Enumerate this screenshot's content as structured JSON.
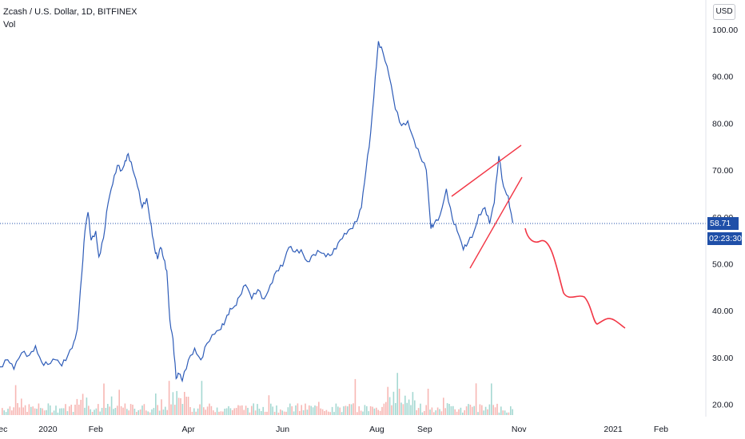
{
  "header": {
    "symbol": "Zcash / U.S. Dollar, 1D, BITFINEX",
    "indicator": "Vol"
  },
  "currency_button": "USD",
  "last_price": "58.71",
  "countdown": "02:23:30",
  "colors": {
    "line": "#2e5cb8",
    "drawing": "#f23645",
    "vol_up": "#a5d8d2",
    "vol_down": "#f7b7b4",
    "badge": "#1f4fa8"
  },
  "chart_data": {
    "type": "line",
    "title": "Zcash / U.S. Dollar, 1D, BITFINEX",
    "xlabel": "",
    "ylabel": "",
    "ylim": [
      19,
      102
    ],
    "y_ticks": [
      "100.00",
      "90.00",
      "80.00",
      "70.00",
      "60.00",
      "50.00",
      "40.00",
      "30.00",
      "20.00"
    ],
    "x_ticks": [
      "Dec",
      "2020",
      "Feb",
      "Apr",
      "Jun",
      "Aug",
      "Sep",
      "Nov",
      "2021",
      "Feb"
    ],
    "x_tick_dates": [
      "2019-12-01",
      "2020-01-01",
      "2020-02-01",
      "2020-04-01",
      "2020-06-01",
      "2020-08-01",
      "2020-09-01",
      "2020-11-01",
      "2021-01-01",
      "2021-02-01"
    ],
    "x_range": [
      "2019-12-01",
      "2021-03-02"
    ],
    "last_value": 58.71,
    "series": [
      {
        "values": [
          [
            "2019-12-01",
            28.0
          ],
          [
            "2019-12-06",
            29.5
          ],
          [
            "2019-12-10",
            27.5
          ],
          [
            "2019-12-15",
            31.0
          ],
          [
            "2019-12-20",
            30.5
          ],
          [
            "2019-12-24",
            32.5
          ],
          [
            "2019-12-28",
            29.0
          ],
          [
            "2020-01-01",
            28.5
          ],
          [
            "2020-01-06",
            29.5
          ],
          [
            "2020-01-10",
            28.2
          ],
          [
            "2020-01-14",
            30.5
          ],
          [
            "2020-01-18",
            33.5
          ],
          [
            "2020-01-20",
            36.0
          ],
          [
            "2020-01-23",
            48.0
          ],
          [
            "2020-01-25",
            57.0
          ],
          [
            "2020-01-27",
            61.0
          ],
          [
            "2020-01-29",
            55.0
          ],
          [
            "2020-02-01",
            57.0
          ],
          [
            "2020-02-03",
            51.5
          ],
          [
            "2020-02-06",
            55.5
          ],
          [
            "2020-02-09",
            63.0
          ],
          [
            "2020-02-12",
            67.0
          ],
          [
            "2020-02-15",
            71.0
          ],
          [
            "2020-02-18",
            70.0
          ],
          [
            "2020-02-20",
            72.0
          ],
          [
            "2020-02-22",
            73.5
          ],
          [
            "2020-02-25",
            70.0
          ],
          [
            "2020-02-28",
            66.5
          ],
          [
            "2020-03-02",
            62.0
          ],
          [
            "2020-03-05",
            64.0
          ],
          [
            "2020-03-08",
            58.0
          ],
          [
            "2020-03-10",
            53.5
          ],
          [
            "2020-03-12",
            51.0
          ],
          [
            "2020-03-14",
            53.5
          ],
          [
            "2020-03-16",
            51.0
          ],
          [
            "2020-03-18",
            48.5
          ],
          [
            "2020-03-20",
            38.0
          ],
          [
            "2020-03-22",
            34.0
          ],
          [
            "2020-03-24",
            25.5
          ],
          [
            "2020-03-26",
            26.5
          ],
          [
            "2020-03-28",
            25.0
          ],
          [
            "2020-04-01",
            29.5
          ],
          [
            "2020-04-05",
            32.0
          ],
          [
            "2020-04-09",
            29.5
          ],
          [
            "2020-04-13",
            33.0
          ],
          [
            "2020-04-18",
            35.0
          ],
          [
            "2020-04-22",
            36.0
          ],
          [
            "2020-04-25",
            38.0
          ],
          [
            "2020-04-28",
            40.5
          ],
          [
            "2020-05-01",
            41.0
          ],
          [
            "2020-05-04",
            43.0
          ],
          [
            "2020-05-08",
            45.5
          ],
          [
            "2020-05-12",
            42.5
          ],
          [
            "2020-05-16",
            44.5
          ],
          [
            "2020-05-20",
            42.5
          ],
          [
            "2020-05-24",
            45.5
          ],
          [
            "2020-05-28",
            48.5
          ],
          [
            "2020-06-01",
            49.5
          ],
          [
            "2020-06-05",
            53.5
          ],
          [
            "2020-06-09",
            52.5
          ],
          [
            "2020-06-13",
            53.0
          ],
          [
            "2020-06-17",
            50.5
          ],
          [
            "2020-06-21",
            52.0
          ],
          [
            "2020-06-25",
            52.5
          ],
          [
            "2020-06-29",
            51.5
          ],
          [
            "2020-07-03",
            52.0
          ],
          [
            "2020-07-07",
            54.5
          ],
          [
            "2020-07-11",
            56.5
          ],
          [
            "2020-07-15",
            57.5
          ],
          [
            "2020-07-19",
            59.0
          ],
          [
            "2020-07-22",
            62.0
          ],
          [
            "2020-07-25",
            70.0
          ],
          [
            "2020-07-28",
            78.0
          ],
          [
            "2020-07-31",
            90.0
          ],
          [
            "2020-08-02",
            97.5
          ],
          [
            "2020-08-05",
            95.0
          ],
          [
            "2020-08-09",
            90.0
          ],
          [
            "2020-08-13",
            83.0
          ],
          [
            "2020-08-17",
            79.5
          ],
          [
            "2020-08-21",
            80.5
          ],
          [
            "2020-08-25",
            76.5
          ],
          [
            "2020-08-29",
            73.0
          ],
          [
            "2020-09-02",
            70.0
          ],
          [
            "2020-09-05",
            57.5
          ],
          [
            "2020-09-07",
            58.5
          ],
          [
            "2020-09-11",
            60.5
          ],
          [
            "2020-09-15",
            66.0
          ],
          [
            "2020-09-19",
            59.5
          ],
          [
            "2020-09-22",
            57.0
          ],
          [
            "2020-09-26",
            53.0
          ],
          [
            "2020-09-29",
            54.5
          ],
          [
            "2020-10-03",
            57.0
          ],
          [
            "2020-10-06",
            60.5
          ],
          [
            "2020-10-10",
            62.0
          ],
          [
            "2020-10-13",
            58.5
          ],
          [
            "2020-10-16",
            63.0
          ],
          [
            "2020-10-19",
            73.0
          ],
          [
            "2020-10-22",
            66.5
          ],
          [
            "2020-10-25",
            64.5
          ],
          [
            "2020-10-28",
            58.71
          ]
        ]
      }
    ]
  }
}
